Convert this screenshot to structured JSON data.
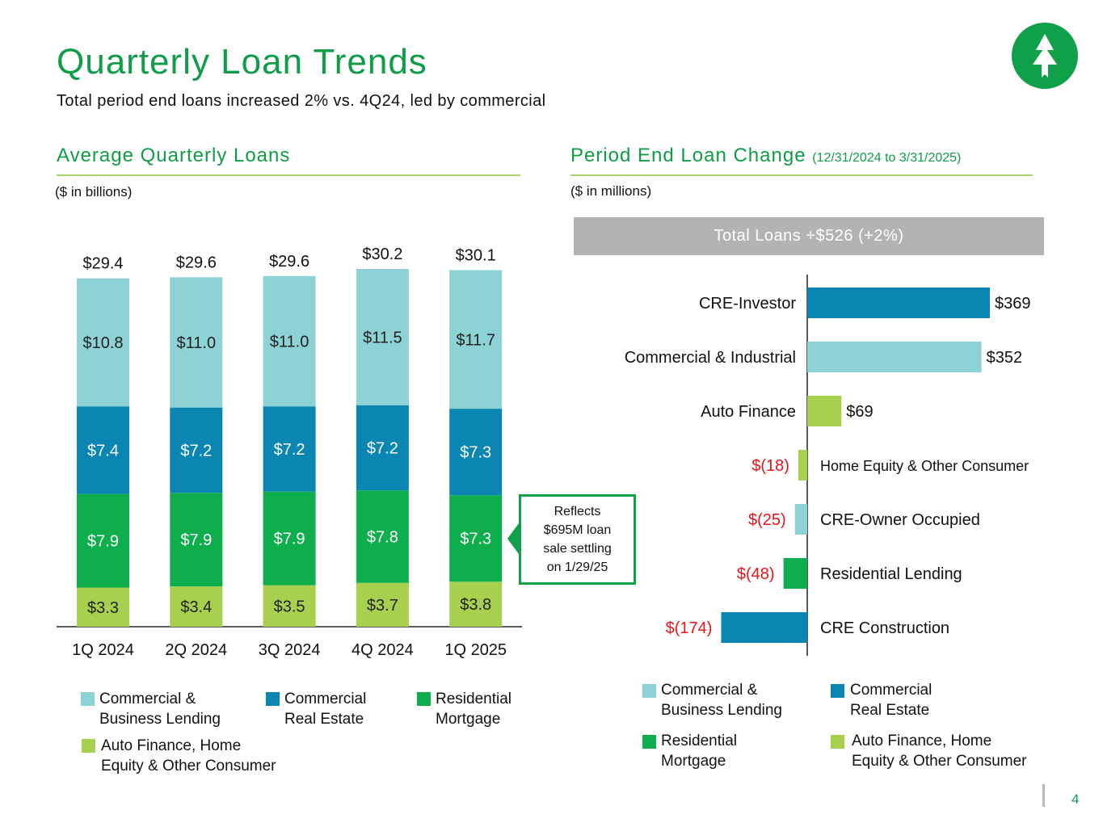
{
  "header": {
    "title": "Quarterly Loan Trends",
    "subtitle": "Total period end loans increased 2% vs. 4Q24, led by commercial",
    "logo_icon": "tree-logo-icon"
  },
  "left_panel": {
    "title": "Average Quarterly Loans",
    "unit": "($ in billions)",
    "callout": [
      "Reflects",
      "$695M loan",
      "sale settling",
      "on 1/29/25"
    ],
    "legend": [
      {
        "lines": [
          "Commercial &",
          "Business Lending"
        ],
        "color": "#8dd3d6"
      },
      {
        "lines": [
          "Commercial",
          "Real Estate"
        ],
        "color": "#0b86b3"
      },
      {
        "lines": [
          "Residential",
          "Mortgage"
        ],
        "color": "#0fae4c"
      },
      {
        "lines": [
          "Auto Finance, Home",
          "Equity & Other Consumer"
        ],
        "color": "#a6d04e"
      }
    ]
  },
  "right_panel": {
    "title": "Period End Loan Change",
    "title_suffix": "(12/31/2024 to 3/31/2025)",
    "unit": "($ in millions)",
    "banner": "Total Loans +$526 (+2%)",
    "legend": [
      {
        "lines": [
          "Commercial &",
          "Business Lending"
        ],
        "color": "#8dd3d6"
      },
      {
        "lines": [
          "Commercial",
          "Real Estate"
        ],
        "color": "#0b86b3"
      },
      {
        "lines": [
          "Residential",
          "Mortgage"
        ],
        "color": "#0fae4c"
      },
      {
        "lines": [
          "Auto Finance, Home",
          "Equity & Other Consumer"
        ],
        "color": "#a6d04e"
      }
    ]
  },
  "page_number": "4",
  "colors": {
    "brand_green": "#0f9d47",
    "cbl": "#8dd3d6",
    "cre": "#0b86b3",
    "resi": "#0fae4c",
    "consumer": "#a6d04e",
    "negative_label": "#e8141b"
  },
  "chart_data": [
    {
      "type": "bar",
      "stacked": true,
      "title": "Average Quarterly Loans",
      "ylabel": "($ in billions)",
      "categories": [
        "1Q 2024",
        "2Q 2024",
        "3Q 2024",
        "4Q 2024",
        "1Q 2025"
      ],
      "totals": [
        "$29.4",
        "$29.6",
        "$29.6",
        "$30.2",
        "$30.1"
      ],
      "series": [
        {
          "name": "Auto Finance, Home Equity & Other Consumer",
          "color": "#a6d04e",
          "values": [
            3.3,
            3.4,
            3.5,
            3.7,
            3.8
          ],
          "labels": [
            "$3.3",
            "$3.4",
            "$3.5",
            "$3.7",
            "$3.8"
          ],
          "label_color": "#222222"
        },
        {
          "name": "Residential Mortgage",
          "color": "#0fae4c",
          "values": [
            7.9,
            7.9,
            7.9,
            7.8,
            7.3
          ],
          "labels": [
            "$7.9",
            "$7.9",
            "$7.9",
            "$7.8",
            "$7.3"
          ],
          "label_color": "#ffffff"
        },
        {
          "name": "Commercial Real Estate",
          "color": "#0b86b3",
          "values": [
            7.4,
            7.2,
            7.2,
            7.2,
            7.3
          ],
          "labels": [
            "$7.4",
            "$7.2",
            "$7.2",
            "$7.2",
            "$7.3"
          ],
          "label_color": "#ffffff"
        },
        {
          "name": "Commercial & Business Lending",
          "color": "#8dd3d6",
          "values": [
            10.8,
            11.0,
            11.0,
            11.5,
            11.7
          ],
          "labels": [
            "$10.8",
            "$11.0",
            "$11.0",
            "$11.5",
            "$11.7"
          ],
          "label_color": "#222222"
        }
      ],
      "ylim": [
        0,
        30.2
      ]
    },
    {
      "type": "bar",
      "orientation": "horizontal",
      "title": "Period End Loan Change (12/31/2024 to 3/31/2025)",
      "xlabel": "($ in millions)",
      "categories": [
        "CRE-Investor",
        "Commercial & Industrial",
        "Auto Finance",
        "Home Equity & Other Consumer",
        "CRE-Owner Occupied",
        "Residential Lending",
        "CRE Construction"
      ],
      "values": [
        369,
        352,
        69,
        -18,
        -25,
        -48,
        -174
      ],
      "labels": [
        "$369",
        "$352",
        "$69",
        "$(18)",
        "$(25)",
        "$(48)",
        "$(174)"
      ],
      "colors": [
        "#0b86b3",
        "#8dd3d6",
        "#a6d04e",
        "#a6d04e",
        "#8dd3d6",
        "#0fae4c",
        "#0b86b3"
      ],
      "xlim": [
        -174,
        369
      ]
    }
  ]
}
